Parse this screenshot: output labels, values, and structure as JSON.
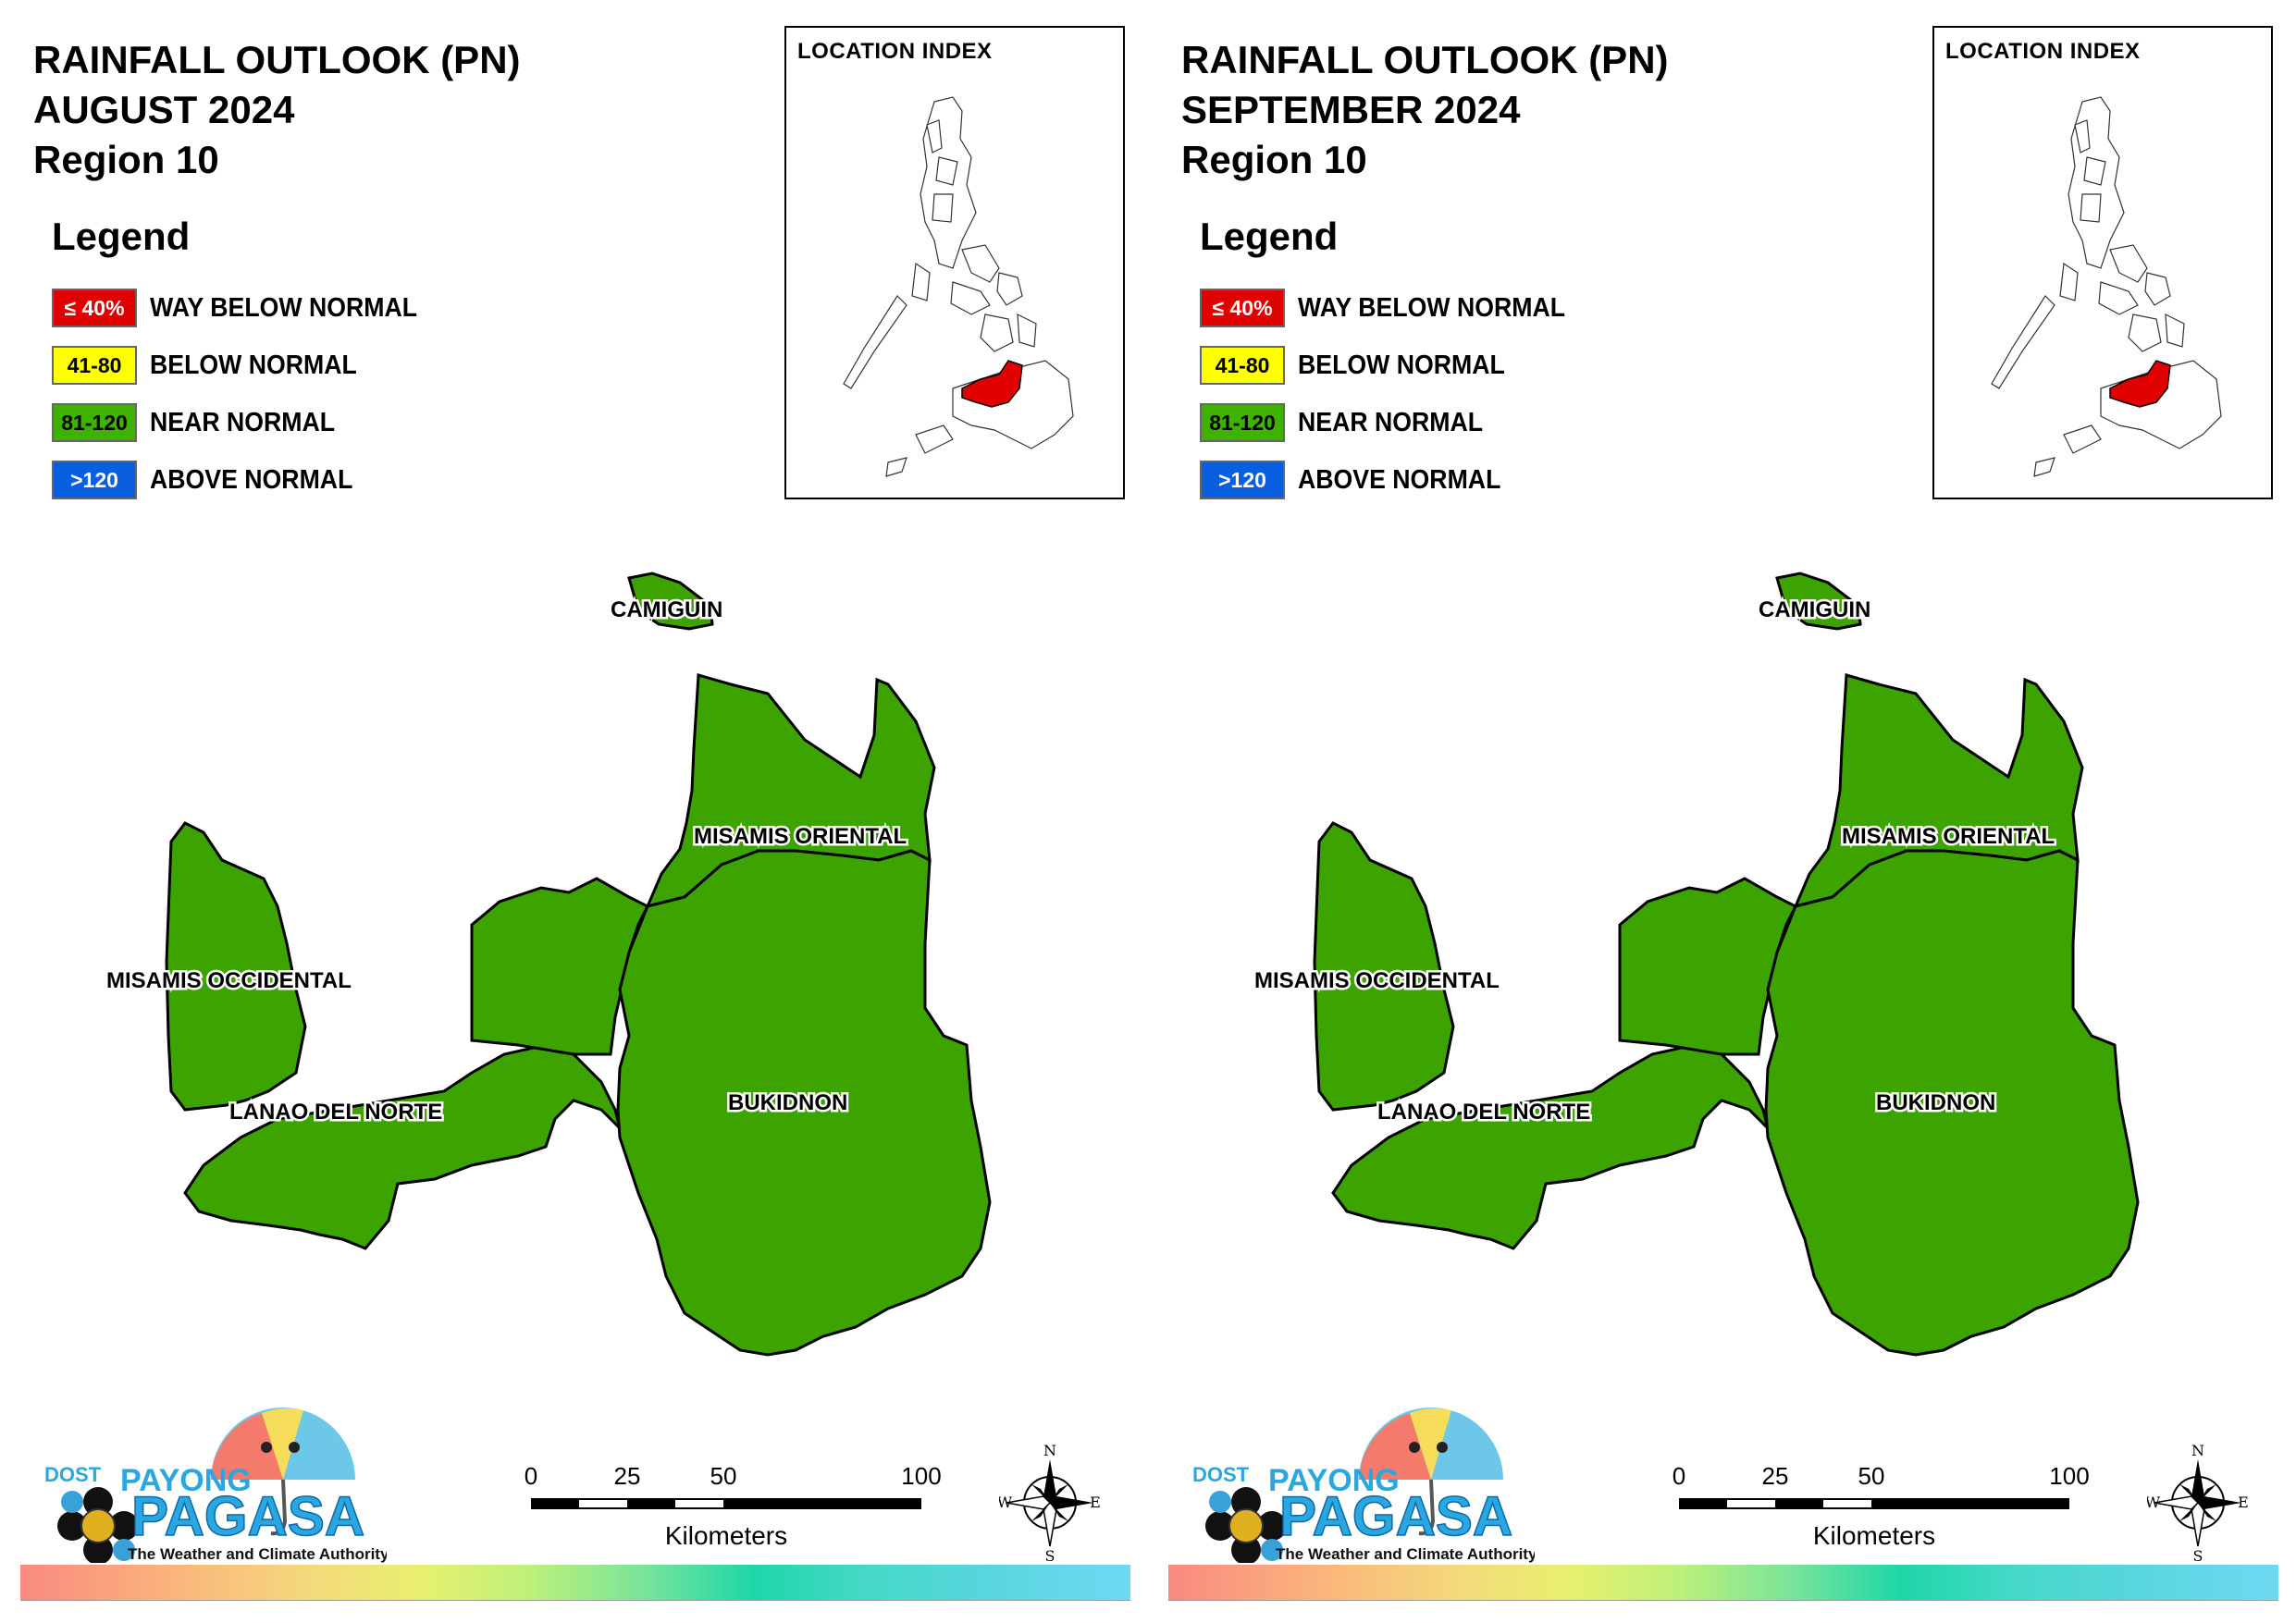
{
  "panels": [
    {
      "title_line1": "RAINFALL OUTLOOK (PN)",
      "title_line2": "AUGUST 2024",
      "title_line3": "Region 10"
    },
    {
      "title_line1": "RAINFALL OUTLOOK (PN)",
      "title_line2": "SEPTEMBER 2024",
      "title_line3": "Region 10"
    }
  ],
  "legend": {
    "heading": "Legend",
    "items": [
      {
        "swatch": "≤ 40%",
        "label": "WAY BELOW NORMAL",
        "color": "#e00000",
        "text_color": "#ffffff"
      },
      {
        "swatch": "41-80",
        "label": "BELOW NORMAL",
        "color": "#ffff00",
        "text_color": "#000000"
      },
      {
        "swatch": "81-120",
        "label": "NEAR NORMAL",
        "color": "#3db300",
        "text_color": "#000000"
      },
      {
        "swatch": ">120",
        "label": "ABOVE NORMAL",
        "color": "#0a5fe0",
        "text_color": "#ffffff"
      }
    ]
  },
  "location_index": {
    "title": "LOCATION INDEX",
    "highlight_color": "#e00000"
  },
  "provinces": {
    "camiguin": "CAMIGUIN",
    "misamis_oriental": "MISAMIS ORIENTAL",
    "misamis_occidental": "MISAMIS OCCIDENTAL",
    "lanao_del_norte": "LANAO DEL NORTE",
    "bukidnon": "BUKIDNON",
    "fill_color": "#3da300"
  },
  "scale": {
    "ticks": [
      "0",
      "25",
      "50",
      "100"
    ],
    "unit": "Kilometers"
  },
  "compass": {
    "n": "N",
    "s": "S",
    "e": "E",
    "w": "W"
  },
  "logo": {
    "dost": "DOST",
    "payong": "PAYONG",
    "pagasa": "PAGASA",
    "tagline": "The Weather and Climate Authority"
  }
}
